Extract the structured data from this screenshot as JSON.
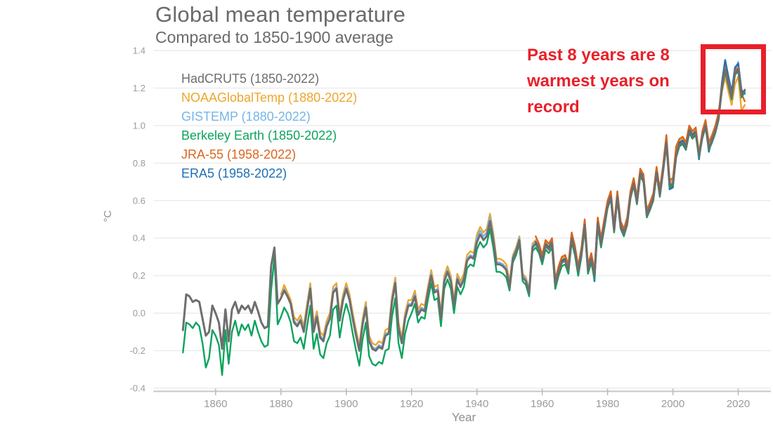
{
  "title": "Global mean temperature",
  "subtitle": "Compared to 1850-1900 average",
  "annotation": {
    "line1": "Past 8 years are 8",
    "line2": "warmest years on",
    "line3": "record",
    "color": "#e8202a",
    "box_color": "#e8202a"
  },
  "chart_data": {
    "type": "line",
    "title": "Global mean temperature",
    "subtitle": "Compared to 1850-1900 average",
    "xlabel": "Year",
    "ylabel": "°C",
    "xlim": [
      1841,
      2030
    ],
    "ylim": [
      -0.4,
      1.4
    ],
    "xticks": [
      1860,
      1880,
      1900,
      1920,
      1940,
      1960,
      1980,
      2000,
      2020
    ],
    "yticks": [
      -0.4,
      -0.2,
      0.0,
      0.2,
      0.4,
      0.6,
      0.8,
      1.0,
      1.2,
      1.4
    ],
    "grid": "horizontal",
    "legend_position": "inside-top-left",
    "highlight_box_years": [
      2015,
      2022
    ],
    "series": [
      {
        "name": "HadCRUT5",
        "label": "HadCRUT5 (1850-2022)",
        "color": "#6e6e6e",
        "start_year": 1850,
        "values": [
          -0.09,
          0.1,
          0.09,
          0.06,
          0.07,
          0.06,
          -0.03,
          -0.12,
          -0.1,
          0.04,
          0.0,
          -0.05,
          -0.19,
          0.02,
          -0.15,
          0.02,
          0.06,
          0.0,
          0.04,
          0.02,
          0.04,
          0.0,
          0.06,
          0.01,
          -0.05,
          -0.08,
          -0.07,
          0.25,
          0.35,
          0.05,
          0.08,
          0.12,
          0.09,
          0.05,
          -0.05,
          -0.07,
          -0.04,
          -0.1,
          0.02,
          0.13,
          -0.1,
          -0.02,
          -0.13,
          -0.15,
          -0.07,
          -0.03,
          0.11,
          0.13,
          -0.04,
          0.07,
          0.13,
          0.07,
          -0.03,
          -0.12,
          -0.2,
          -0.06,
          0.03,
          -0.15,
          -0.19,
          -0.2,
          -0.18,
          -0.19,
          -0.12,
          -0.11,
          0.06,
          0.16,
          -0.08,
          -0.16,
          -0.03,
          0.04,
          0.04,
          0.09,
          -0.01,
          0.02,
          0.01,
          0.11,
          0.2,
          0.11,
          0.12,
          -0.03,
          0.17,
          0.22,
          0.17,
          0.04,
          0.18,
          0.14,
          0.18,
          0.28,
          0.3,
          0.29,
          0.38,
          0.42,
          0.39,
          0.41,
          0.49,
          0.39,
          0.26,
          0.26,
          0.25,
          0.23,
          0.14,
          0.29,
          0.33,
          0.39,
          0.19,
          0.17,
          0.11,
          0.35,
          0.37,
          0.34,
          0.28,
          0.36,
          0.34,
          0.37,
          0.15,
          0.22,
          0.27,
          0.28,
          0.23,
          0.4,
          0.33,
          0.22,
          0.32,
          0.47,
          0.23,
          0.29,
          0.2,
          0.48,
          0.37,
          0.47,
          0.57,
          0.62,
          0.44,
          0.62,
          0.46,
          0.42,
          0.48,
          0.62,
          0.69,
          0.59,
          0.74,
          0.71,
          0.52,
          0.56,
          0.61,
          0.75,
          0.63,
          0.76,
          0.91,
          0.68,
          0.69,
          0.84,
          0.9,
          0.91,
          0.88,
          0.97,
          0.94,
          0.96,
          0.84,
          0.94,
          1.0,
          0.88,
          0.92,
          0.97,
          1.04,
          1.2,
          1.3,
          1.22,
          1.15,
          1.28,
          1.3,
          1.16,
          1.19
        ]
      },
      {
        "name": "NOAAGlobalTemp",
        "label": "NOAAGlobalTemp (1880-2022)",
        "color": "#eda62c",
        "start_year": 1880,
        "values": [
          0.1,
          0.15,
          0.11,
          0.07,
          -0.02,
          -0.04,
          -0.01,
          -0.07,
          0.05,
          0.16,
          -0.06,
          0.01,
          -0.1,
          -0.12,
          -0.04,
          0.0,
          0.14,
          0.16,
          -0.01,
          0.1,
          0.16,
          0.1,
          0.0,
          -0.09,
          -0.17,
          -0.03,
          0.06,
          -0.12,
          -0.16,
          -0.17,
          -0.15,
          -0.16,
          -0.09,
          -0.08,
          0.09,
          0.19,
          -0.05,
          -0.13,
          0.0,
          0.07,
          0.07,
          0.12,
          0.02,
          0.05,
          0.04,
          0.14,
          0.23,
          0.14,
          0.15,
          0.0,
          0.2,
          0.25,
          0.2,
          0.07,
          0.21,
          0.17,
          0.21,
          0.31,
          0.33,
          0.32,
          0.42,
          0.46,
          0.43,
          0.45,
          0.53,
          0.43,
          0.29,
          0.29,
          0.28,
          0.26,
          0.17,
          0.31,
          0.35,
          0.41,
          0.21,
          0.19,
          0.13,
          0.37,
          0.39,
          0.36,
          0.3,
          0.38,
          0.36,
          0.39,
          0.17,
          0.24,
          0.29,
          0.3,
          0.25,
          0.42,
          0.35,
          0.24,
          0.34,
          0.49,
          0.25,
          0.31,
          0.22,
          0.5,
          0.39,
          0.49,
          0.59,
          0.64,
          0.46,
          0.64,
          0.48,
          0.44,
          0.5,
          0.64,
          0.71,
          0.61,
          0.76,
          0.73,
          0.54,
          0.58,
          0.63,
          0.77,
          0.65,
          0.78,
          0.93,
          0.7,
          0.71,
          0.86,
          0.92,
          0.93,
          0.9,
          0.99,
          0.96,
          0.98,
          0.86,
          0.96,
          1.02,
          0.9,
          0.94,
          0.99,
          1.06,
          1.18,
          1.26,
          1.18,
          1.11,
          1.22,
          1.26,
          1.08,
          1.11
        ]
      },
      {
        "name": "GISTEMP",
        "label": "GISTEMP (1880-2022)",
        "color": "#76b5e6",
        "start_year": 1880,
        "values": [
          0.08,
          0.13,
          0.09,
          0.05,
          -0.04,
          -0.06,
          -0.03,
          -0.09,
          0.03,
          0.14,
          -0.08,
          -0.01,
          -0.12,
          -0.14,
          -0.06,
          -0.02,
          0.12,
          0.14,
          -0.03,
          0.08,
          0.14,
          0.08,
          -0.02,
          -0.11,
          -0.19,
          -0.05,
          0.04,
          -0.14,
          -0.18,
          -0.19,
          -0.17,
          -0.18,
          -0.11,
          -0.1,
          0.07,
          0.17,
          -0.07,
          -0.15,
          -0.02,
          0.05,
          0.05,
          0.1,
          0.0,
          0.03,
          0.02,
          0.12,
          0.21,
          0.12,
          0.13,
          -0.02,
          0.18,
          0.23,
          0.18,
          0.05,
          0.19,
          0.15,
          0.19,
          0.29,
          0.31,
          0.3,
          0.4,
          0.44,
          0.41,
          0.43,
          0.51,
          0.41,
          0.27,
          0.27,
          0.26,
          0.24,
          0.15,
          0.3,
          0.34,
          0.4,
          0.2,
          0.18,
          0.12,
          0.36,
          0.38,
          0.35,
          0.29,
          0.37,
          0.35,
          0.38,
          0.16,
          0.23,
          0.28,
          0.29,
          0.24,
          0.41,
          0.34,
          0.23,
          0.33,
          0.48,
          0.24,
          0.3,
          0.21,
          0.49,
          0.38,
          0.48,
          0.58,
          0.63,
          0.45,
          0.63,
          0.47,
          0.43,
          0.49,
          0.63,
          0.7,
          0.6,
          0.75,
          0.72,
          0.53,
          0.57,
          0.62,
          0.76,
          0.64,
          0.77,
          0.92,
          0.69,
          0.7,
          0.85,
          0.91,
          0.92,
          0.89,
          0.98,
          0.95,
          0.97,
          0.85,
          0.95,
          1.01,
          0.89,
          0.93,
          0.98,
          1.05,
          1.22,
          1.33,
          1.24,
          1.16,
          1.29,
          1.34,
          1.18,
          1.17
        ]
      },
      {
        "name": "BerkeleyEarth",
        "label": "Berkeley Earth (1850-2022)",
        "color": "#0da35e",
        "start_year": 1850,
        "values": [
          -0.21,
          -0.05,
          -0.06,
          -0.08,
          -0.05,
          -0.07,
          -0.16,
          -0.29,
          -0.24,
          -0.09,
          -0.12,
          -0.17,
          -0.33,
          -0.09,
          -0.27,
          -0.1,
          -0.04,
          -0.12,
          -0.06,
          -0.09,
          -0.06,
          -0.12,
          -0.04,
          -0.1,
          -0.15,
          -0.18,
          -0.17,
          0.12,
          0.3,
          -0.06,
          -0.02,
          0.03,
          0.0,
          -0.05,
          -0.15,
          -0.16,
          -0.13,
          -0.19,
          -0.07,
          0.04,
          -0.19,
          -0.11,
          -0.22,
          -0.24,
          -0.16,
          -0.12,
          0.02,
          0.04,
          -0.13,
          -0.02,
          0.05,
          -0.01,
          -0.11,
          -0.2,
          -0.28,
          -0.14,
          -0.05,
          -0.23,
          -0.27,
          -0.28,
          -0.26,
          -0.27,
          -0.2,
          -0.19,
          -0.02,
          0.08,
          -0.16,
          -0.24,
          -0.11,
          -0.04,
          0.0,
          0.05,
          -0.05,
          -0.02,
          -0.03,
          0.07,
          0.16,
          0.07,
          0.08,
          -0.07,
          0.13,
          0.18,
          0.13,
          0.0,
          0.14,
          0.1,
          0.14,
          0.24,
          0.26,
          0.25,
          0.34,
          0.38,
          0.35,
          0.37,
          0.45,
          0.35,
          0.22,
          0.22,
          0.21,
          0.19,
          0.12,
          0.27,
          0.31,
          0.37,
          0.17,
          0.15,
          0.09,
          0.33,
          0.35,
          0.32,
          0.26,
          0.34,
          0.32,
          0.35,
          0.13,
          0.2,
          0.25,
          0.26,
          0.21,
          0.38,
          0.31,
          0.2,
          0.3,
          0.45,
          0.21,
          0.27,
          0.18,
          0.46,
          0.35,
          0.45,
          0.56,
          0.61,
          0.43,
          0.61,
          0.45,
          0.41,
          0.47,
          0.61,
          0.68,
          0.58,
          0.73,
          0.7,
          0.51,
          0.55,
          0.6,
          0.74,
          0.62,
          0.75,
          0.9,
          0.67,
          0.68,
          0.83,
          0.89,
          0.9,
          0.87,
          0.96,
          0.93,
          0.95,
          0.83,
          0.93,
          0.99,
          0.87,
          0.91,
          0.96,
          1.03,
          1.19,
          1.29,
          1.21,
          1.14,
          1.27,
          1.29,
          1.15,
          1.18
        ]
      },
      {
        "name": "JRA-55",
        "label": "JRA-55 (1958-2022)",
        "color": "#d9661f",
        "start_year": 1958,
        "values": [
          0.41,
          0.37,
          0.31,
          0.39,
          0.37,
          0.4,
          0.18,
          0.25,
          0.3,
          0.31,
          0.26,
          0.43,
          0.36,
          0.25,
          0.35,
          0.5,
          0.26,
          0.32,
          0.23,
          0.51,
          0.4,
          0.5,
          0.6,
          0.65,
          0.47,
          0.65,
          0.49,
          0.45,
          0.51,
          0.65,
          0.72,
          0.62,
          0.77,
          0.74,
          0.55,
          0.59,
          0.64,
          0.78,
          0.66,
          0.79,
          0.95,
          0.71,
          0.72,
          0.89,
          0.93,
          0.94,
          0.91,
          1.0,
          0.97,
          0.99,
          0.84,
          0.97,
          1.03,
          0.91,
          0.95,
          1.0,
          1.07,
          1.21,
          1.31,
          1.23,
          1.16,
          1.29,
          1.31,
          1.17,
          1.13
        ]
      },
      {
        "name": "ERA5",
        "label": "ERA5 (1958-2022)",
        "color": "#1f6eb3",
        "start_year": 1958,
        "values": [
          0.38,
          0.35,
          0.29,
          0.37,
          0.35,
          0.38,
          0.13,
          0.21,
          0.28,
          0.29,
          0.22,
          0.41,
          0.34,
          0.2,
          0.33,
          0.48,
          0.24,
          0.3,
          0.17,
          0.49,
          0.38,
          0.48,
          0.58,
          0.63,
          0.45,
          0.63,
          0.47,
          0.43,
          0.49,
          0.63,
          0.7,
          0.6,
          0.75,
          0.72,
          0.53,
          0.57,
          0.62,
          0.76,
          0.64,
          0.77,
          0.92,
          0.66,
          0.67,
          0.85,
          0.91,
          0.92,
          0.89,
          0.98,
          0.95,
          0.97,
          0.82,
          0.95,
          1.01,
          0.86,
          0.93,
          0.98,
          1.05,
          1.23,
          1.35,
          1.26,
          1.18,
          1.31,
          1.33,
          1.19,
          1.17
        ]
      }
    ]
  }
}
